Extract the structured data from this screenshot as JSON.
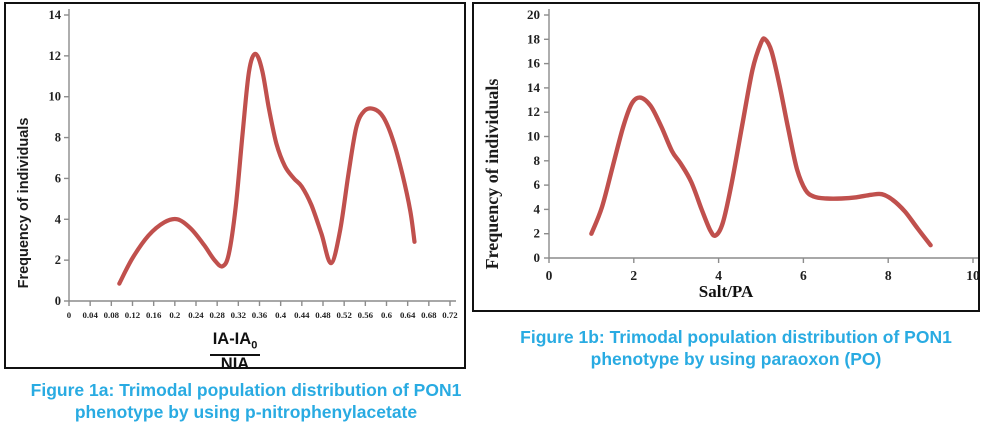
{
  "colors": {
    "curve": "#c0504d",
    "caption_text": "#29abe2",
    "axis_line": "#8c8c8c",
    "tick_text": "#1f1f1f",
    "box_border": "#111111",
    "background": "#ffffff"
  },
  "chart_data": [
    {
      "id": "fig1a",
      "type": "line",
      "ylabel": "Frequency of individuals",
      "xlabel_numerator": "IA-IA",
      "xlabel_numerator_subscript": "0",
      "xlabel_denominator": "NIA",
      "xlim": [
        0,
        0.72
      ],
      "ylim": [
        0,
        14
      ],
      "y_ticks": [
        "0",
        "2",
        "4",
        "6",
        "8",
        "10",
        "12",
        "14"
      ],
      "x_ticks": [
        "0",
        "0.04",
        "0.08",
        "0.12",
        "0.16",
        "0.2",
        "0.24",
        "0.28",
        "0.32",
        "0.36",
        "0.4",
        "0.44",
        "0.48",
        "0.52",
        "0.56",
        "0.6",
        "0.64",
        "0.68",
        "0.72"
      ],
      "grid": false,
      "legend": "none",
      "points": [
        [
          0.095,
          0.85
        ],
        [
          0.12,
          2.1
        ],
        [
          0.15,
          3.2
        ],
        [
          0.18,
          3.85
        ],
        [
          0.205,
          4.0
        ],
        [
          0.23,
          3.55
        ],
        [
          0.255,
          2.75
        ],
        [
          0.275,
          2.0
        ],
        [
          0.29,
          1.7
        ],
        [
          0.302,
          2.3
        ],
        [
          0.315,
          4.6
        ],
        [
          0.328,
          8.2
        ],
        [
          0.34,
          11.2
        ],
        [
          0.352,
          12.1
        ],
        [
          0.365,
          11.3
        ],
        [
          0.378,
          9.4
        ],
        [
          0.392,
          7.7
        ],
        [
          0.408,
          6.6
        ],
        [
          0.425,
          6.0
        ],
        [
          0.44,
          5.6
        ],
        [
          0.458,
          4.7
        ],
        [
          0.477,
          3.3
        ],
        [
          0.495,
          1.85
        ],
        [
          0.512,
          3.4
        ],
        [
          0.528,
          6.2
        ],
        [
          0.543,
          8.5
        ],
        [
          0.558,
          9.3
        ],
        [
          0.576,
          9.4
        ],
        [
          0.594,
          9.0
        ],
        [
          0.612,
          7.9
        ],
        [
          0.63,
          6.2
        ],
        [
          0.645,
          4.4
        ],
        [
          0.653,
          2.9
        ]
      ],
      "caption_line1": "Figure 1a: Trimodal population distribution of PON1",
      "caption_line2": "phenotype by using p-nitrophenylacetate"
    },
    {
      "id": "fig1b",
      "type": "line",
      "ylabel": "Frequency of individuals",
      "xlabel": "Salt/PA",
      "xlim": [
        0,
        10
      ],
      "ylim": [
        0,
        20
      ],
      "y_ticks": [
        "0",
        "2",
        "4",
        "6",
        "8",
        "10",
        "12",
        "14",
        "16",
        "18",
        "20"
      ],
      "x_ticks": [
        "0",
        "2",
        "4",
        "6",
        "8",
        "10"
      ],
      "grid": false,
      "legend": "none",
      "points": [
        [
          1.0,
          2.0
        ],
        [
          1.25,
          4.2
        ],
        [
          1.5,
          7.5
        ],
        [
          1.75,
          10.8
        ],
        [
          1.95,
          12.7
        ],
        [
          2.15,
          13.2
        ],
        [
          2.4,
          12.5
        ],
        [
          2.65,
          10.8
        ],
        [
          2.9,
          8.8
        ],
        [
          3.1,
          7.8
        ],
        [
          3.35,
          6.3
        ],
        [
          3.6,
          4.0
        ],
        [
          3.8,
          2.3
        ],
        [
          3.93,
          1.85
        ],
        [
          4.1,
          2.9
        ],
        [
          4.3,
          6.0
        ],
        [
          4.55,
          10.8
        ],
        [
          4.8,
          15.5
        ],
        [
          5.0,
          17.7
        ],
        [
          5.1,
          18.0
        ],
        [
          5.25,
          17.0
        ],
        [
          5.45,
          14.0
        ],
        [
          5.65,
          10.5
        ],
        [
          5.85,
          7.3
        ],
        [
          6.05,
          5.6
        ],
        [
          6.25,
          5.05
        ],
        [
          6.55,
          4.9
        ],
        [
          6.9,
          4.9
        ],
        [
          7.25,
          5.0
        ],
        [
          7.6,
          5.2
        ],
        [
          7.85,
          5.25
        ],
        [
          8.1,
          4.8
        ],
        [
          8.4,
          3.8
        ],
        [
          8.7,
          2.4
        ],
        [
          9.0,
          1.05
        ]
      ],
      "caption_line1": "Figure 1b: Trimodal population distribution of PON1",
      "caption_line2": "phenotype by using paraoxon (PO)"
    }
  ]
}
